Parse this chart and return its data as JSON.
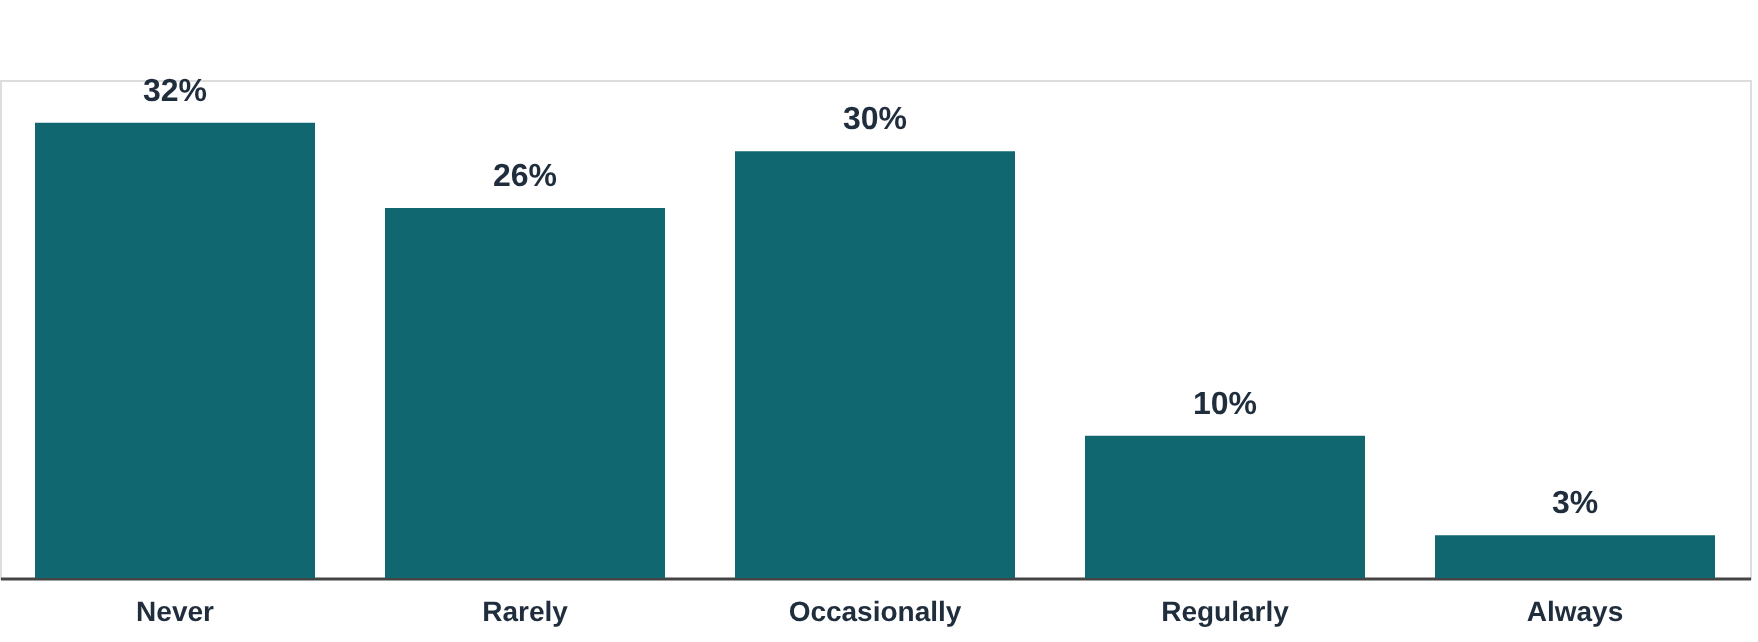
{
  "chart_data": {
    "type": "bar",
    "categories": [
      "Never",
      "Rarely",
      "Occasionally",
      "Regularly",
      "Always"
    ],
    "values": [
      32,
      26,
      30,
      10,
      3
    ],
    "value_labels": [
      "32%",
      "26%",
      "30%",
      "10%",
      "3%"
    ],
    "color": "#11676f",
    "grid": false,
    "tick_labels": "x"
  }
}
